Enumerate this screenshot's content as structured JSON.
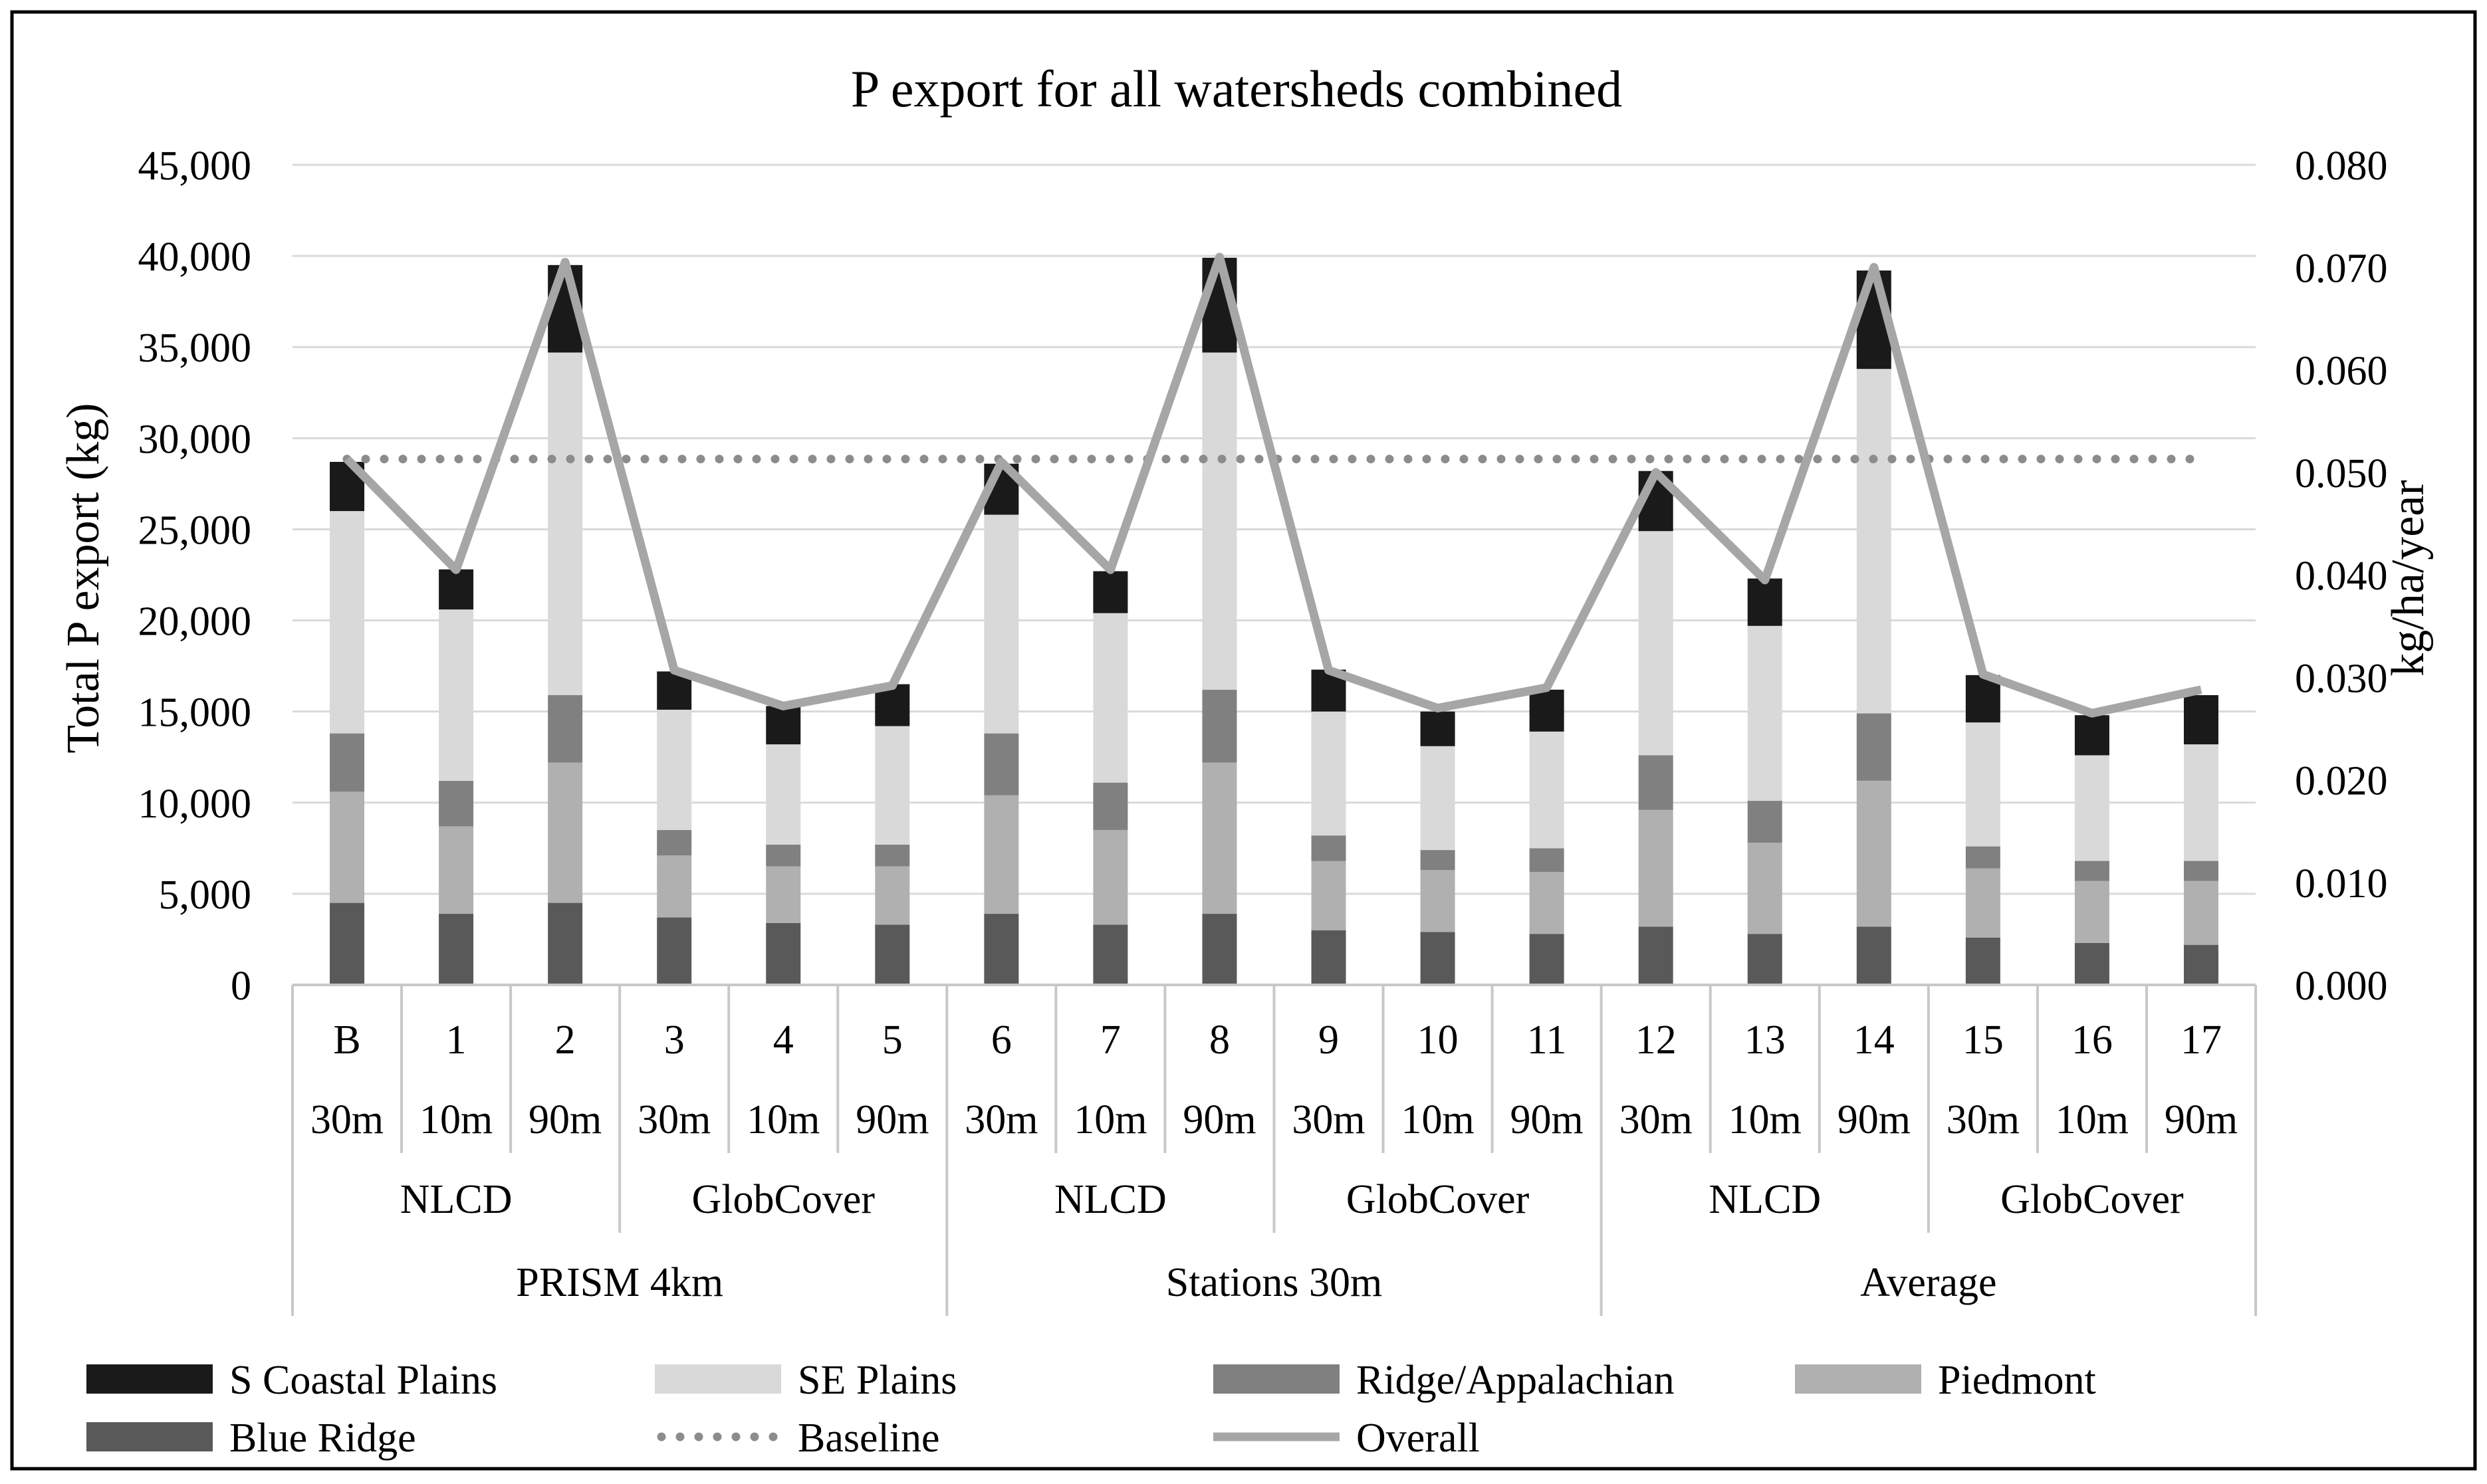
{
  "chart_data": {
    "type": "bar",
    "stacked": true,
    "title": "P export for all watersheds combined",
    "ylabel": "Total P export (kg)",
    "y2label": "kg/ha/year",
    "ylim": [
      0,
      45000
    ],
    "y2lim": [
      0,
      0.08
    ],
    "yticks": [
      0,
      5000,
      10000,
      15000,
      20000,
      25000,
      30000,
      35000,
      40000,
      45000
    ],
    "yticklabels": [
      "0",
      "5,000",
      "10,000",
      "15,000",
      "20,000",
      "25,000",
      "30,000",
      "35,000",
      "40,000",
      "45,000"
    ],
    "y2ticks": [
      0,
      0.01,
      0.02,
      0.03,
      0.04,
      0.05,
      0.06,
      0.07,
      0.08
    ],
    "y2ticklabels": [
      "0.000",
      "0.010",
      "0.020",
      "0.030",
      "0.040",
      "0.050",
      "0.060",
      "0.070",
      "0.080"
    ],
    "grid": true,
    "legend_position": "bottom",
    "categories": [
      "B",
      "1",
      "2",
      "3",
      "4",
      "5",
      "6",
      "7",
      "8",
      "9",
      "10",
      "11",
      "12",
      "13",
      "14",
      "15",
      "16",
      "17"
    ],
    "resolutions": [
      "30m",
      "10m",
      "90m",
      "30m",
      "10m",
      "90m",
      "30m",
      "10m",
      "90m",
      "30m",
      "10m",
      "90m",
      "30m",
      "10m",
      "90m",
      "30m",
      "10m",
      "90m"
    ],
    "landcover_groups": [
      {
        "label": "NLCD",
        "span": 3
      },
      {
        "label": "GlobCover",
        "span": 3
      },
      {
        "label": "NLCD",
        "span": 3
      },
      {
        "label": "GlobCover",
        "span": 3
      },
      {
        "label": "NLCD",
        "span": 3
      },
      {
        "label": "GlobCover",
        "span": 3
      }
    ],
    "climate_groups": [
      {
        "label": "PRISM 4km",
        "span": 6
      },
      {
        "label": "Stations 30m",
        "span": 6
      },
      {
        "label": "Average",
        "span": 6
      }
    ],
    "series": [
      {
        "name": "Blue Ridge",
        "color": "#595959",
        "values": [
          4500,
          3900,
          4500,
          3700,
          3400,
          3300,
          3900,
          3300,
          3900,
          3000,
          2900,
          2800,
          3200,
          2800,
          3200,
          2600,
          2300,
          2200
        ]
      },
      {
        "name": "Piedmont",
        "color": "#b0b0b0",
        "values": [
          6100,
          4800,
          7700,
          3400,
          3100,
          3200,
          6500,
          5200,
          8300,
          3800,
          3400,
          3400,
          6400,
          5000,
          8000,
          3800,
          3400,
          3500
        ]
      },
      {
        "name": "Ridge/Appalachian",
        "color": "#808080",
        "values": [
          3200,
          2500,
          3700,
          1400,
          1200,
          1200,
          3400,
          2600,
          4000,
          1400,
          1100,
          1300,
          3000,
          2300,
          3700,
          1200,
          1100,
          1100
        ]
      },
      {
        "name": "SE Plains",
        "color": "#d9d9d9",
        "values": [
          12200,
          9400,
          18800,
          6600,
          5500,
          6500,
          12000,
          9300,
          18500,
          6800,
          5700,
          6400,
          12300,
          9600,
          18900,
          6800,
          5800,
          6400
        ]
      },
      {
        "name": "S Coastal Plains",
        "color": "#1a1a1a",
        "values": [
          2700,
          2200,
          4800,
          2100,
          2100,
          2300,
          2800,
          2300,
          5200,
          2300,
          1900,
          2300,
          3300,
          2600,
          5400,
          2600,
          2200,
          2700
        ]
      }
    ],
    "lines": [
      {
        "name": "Baseline",
        "style": "dotted",
        "color": "#8c8c8c",
        "axis": "y2",
        "values": [
          0.0513,
          0.0513,
          0.0513,
          0.0513,
          0.0513,
          0.0513,
          0.0513,
          0.0513,
          0.0513,
          0.0513,
          0.0513,
          0.0513,
          0.0513,
          0.0513,
          0.0513,
          0.0513,
          0.0513,
          0.0513
        ]
      },
      {
        "name": "Overall",
        "style": "solid",
        "color": "#a6a6a6",
        "axis": "y2",
        "values": [
          0.0513,
          0.0405,
          0.0705,
          0.0307,
          0.0272,
          0.0292,
          0.051,
          0.0405,
          0.071,
          0.0307,
          0.027,
          0.029,
          0.05,
          0.0395,
          0.07,
          0.0303,
          0.0265,
          0.0288
        ]
      }
    ],
    "legend": [
      {
        "name": "S Coastal Plains",
        "kind": "swatch",
        "color": "#1a1a1a"
      },
      {
        "name": "SE Plains",
        "kind": "swatch",
        "color": "#d9d9d9"
      },
      {
        "name": "Ridge/Appalachian",
        "kind": "swatch",
        "color": "#808080"
      },
      {
        "name": "Piedmont",
        "kind": "swatch",
        "color": "#b0b0b0"
      },
      {
        "name": "Blue Ridge",
        "kind": "swatch",
        "color": "#595959"
      },
      {
        "name": "Baseline",
        "kind": "dotted",
        "color": "#8c8c8c"
      },
      {
        "name": "Overall",
        "kind": "solid",
        "color": "#a6a6a6"
      }
    ]
  }
}
